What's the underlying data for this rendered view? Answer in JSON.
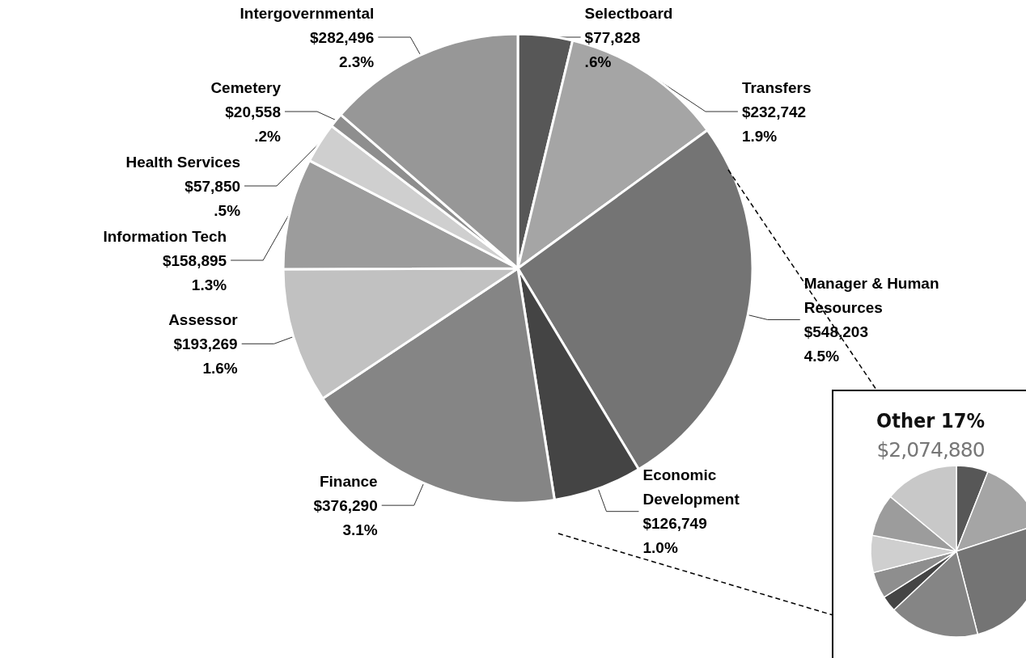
{
  "chart_data": {
    "type": "pie",
    "categories": [
      "Selectboard",
      "Transfers",
      "Manager & Human Resources",
      "Economic Development",
      "Finance",
      "Assessor",
      "Information Tech",
      "Health Services",
      "Cemetery",
      "Intergovernmental"
    ],
    "values": [
      77828,
      232742,
      548203,
      126749,
      376290,
      193269,
      158895,
      57850,
      20558,
      282496
    ],
    "value_labels": [
      "$77,828\n.6%",
      "$232,742\n1.9%",
      "$548,203\n4.5%",
      "$126,749\n1.0%",
      "$376,290\n3.1%",
      "$193,269\n1.6%",
      "$158,895\n1.3%",
      "$57,850\n.5%",
      "$20,558\n.2%",
      "$282,496\n2.3%"
    ],
    "colors": [
      "#575757",
      "#a5a5a5",
      "#747474",
      "#444444",
      "#858585",
      "#c1c1c1",
      "#9c9c9c",
      "#cfcfcf",
      "#8e8e8e",
      "#979797"
    ],
    "annotations": [
      "Other 17%",
      "$2,074,880"
    ],
    "legend": false
  }
}
